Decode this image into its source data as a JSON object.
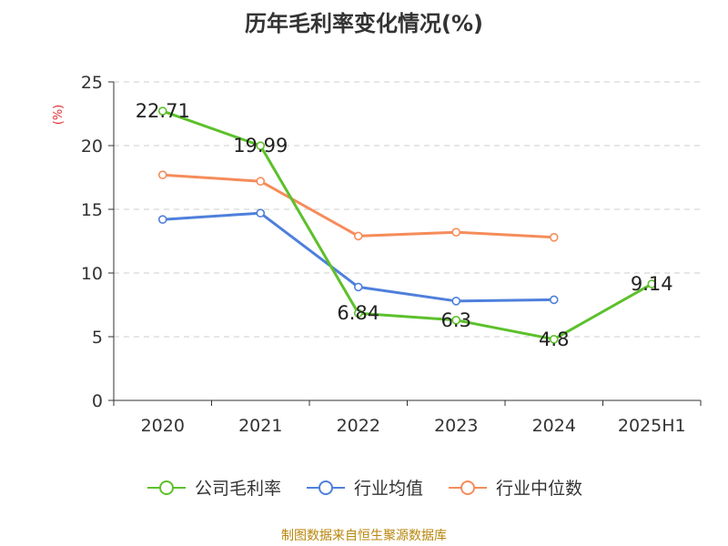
{
  "chart_data": {
    "type": "line",
    "title": "历年毛利率变化情况(%)",
    "ylabel": "(%)",
    "categories": [
      "2020",
      "2021",
      "2022",
      "2023",
      "2024",
      "2025H1"
    ],
    "ylim": [
      0,
      25
    ],
    "yticks": [
      "0",
      "5",
      "10",
      "15",
      "20",
      "25"
    ],
    "grid": true,
    "legend_position": "bottom",
    "series": [
      {
        "name": "公司毛利率",
        "color": "#5cc02b",
        "values": [
          22.71,
          19.99,
          6.84,
          6.3,
          4.8,
          9.14
        ],
        "labels": [
          "22.71",
          "19.99",
          "6.84",
          "6.3",
          "4.8",
          "9.14"
        ]
      },
      {
        "name": "行业均值",
        "color": "#4f7fdb",
        "values": [
          14.2,
          14.7,
          8.9,
          7.8,
          7.9,
          null
        ]
      },
      {
        "name": "行业中位数",
        "color": "#f58c5a",
        "values": [
          17.7,
          17.2,
          12.9,
          13.2,
          12.8,
          null
        ]
      }
    ]
  },
  "source": "制图数据来自恒生聚源数据库"
}
